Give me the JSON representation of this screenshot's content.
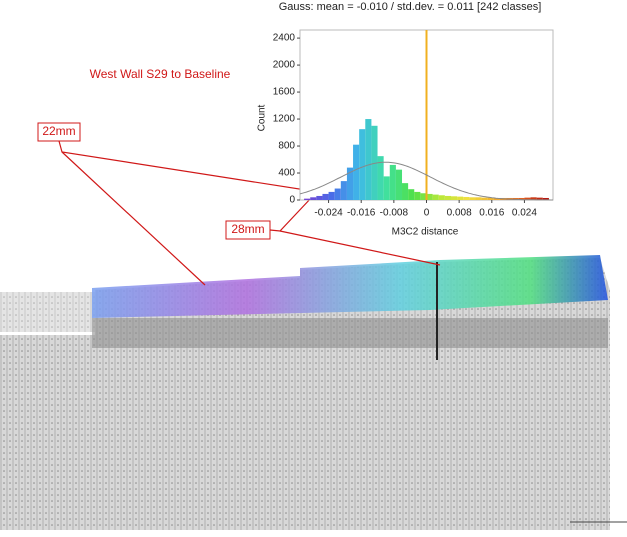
{
  "chart_data": {
    "type": "histogram",
    "title": "Gauss: mean = -0.010 / std.dev. = 0.011 [242 classes]",
    "x_label": "M3C2 distance",
    "y_label": "Count",
    "bins": [
      -0.03,
      -0.0285,
      -0.027,
      -0.0255,
      -0.024,
      -0.0225,
      -0.021,
      -0.0195,
      -0.018,
      -0.0165,
      -0.015,
      -0.0135,
      -0.012,
      -0.0105,
      -0.009,
      -0.0075,
      -0.006,
      -0.0045,
      -0.003,
      -0.0015,
      0,
      0.0015,
      0.003,
      0.0045,
      0.006,
      0.0075,
      0.009,
      0.0105,
      0.012,
      0.0135,
      0.015,
      0.0165,
      0.018,
      0.0195,
      0.021,
      0.0225,
      0.024,
      0.0255,
      0.027,
      0.0285,
      0.03
    ],
    "values": [
      20,
      40,
      60,
      90,
      120,
      170,
      280,
      480,
      820,
      1050,
      1200,
      1100,
      650,
      350,
      520,
      450,
      250,
      160,
      120,
      100,
      90,
      80,
      70,
      60,
      55,
      50,
      45,
      40,
      40,
      35,
      35,
      30,
      30,
      30,
      30,
      30,
      35,
      40,
      35,
      30
    ],
    "colormap": [
      "#7a3fd0",
      "#4a6be8",
      "#3fb8e8",
      "#40e0a0",
      "#4fe04a",
      "#b8e83a",
      "#f0e040",
      "#f0b030",
      "#e06020",
      "#b01010"
    ],
    "xlim": [
      -0.031,
      0.031
    ],
    "ylim": [
      0,
      2520
    ],
    "xticks": [
      -0.024,
      -0.016,
      -0.008,
      0,
      0.008,
      0.016,
      0.024
    ],
    "yticks": [
      0,
      400,
      800,
      1200,
      1600,
      2000,
      2400
    ],
    "marker_x": 0,
    "marker_color": "#f0b020",
    "fit_curve": {
      "mean": -0.01,
      "std_dev": 0.011,
      "peak": 560,
      "color": "#888888"
    },
    "annotations": {
      "heading": "West Wall S29 to Baseline",
      "label_a": "22mm",
      "label_b": "28mm"
    }
  }
}
